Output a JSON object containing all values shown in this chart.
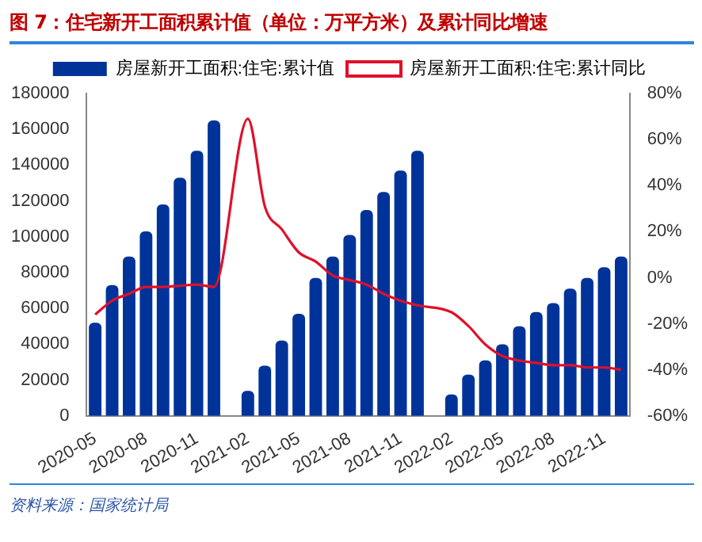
{
  "chart_data": {
    "type": "bar",
    "title": "图 7：住宅新开工面积累计值（单位：万平方米）及累计同比增速",
    "categories": [
      "2020-05",
      null,
      null,
      "2020-08",
      null,
      null,
      "2020-11",
      null,
      null,
      "2021-02",
      null,
      null,
      "2021-05",
      null,
      null,
      "2021-08",
      null,
      null,
      "2021-11",
      null,
      null,
      "2022-02",
      null,
      null,
      "2022-05",
      null,
      null,
      "2022-08",
      null,
      null,
      "2022-11",
      null
    ],
    "series": [
      {
        "name": "房屋新开工面积:住宅:累计值",
        "color": "#003399",
        "values": [
          52000,
          73000,
          89000,
          103000,
          118000,
          133000,
          148000,
          165000,
          null,
          14000,
          28000,
          42000,
          57000,
          77000,
          89000,
          101000,
          115000,
          125000,
          137000,
          148000,
          null,
          12000,
          23000,
          31000,
          40000,
          50000,
          58000,
          63000,
          71000,
          77000,
          83000,
          89000
        ]
      },
      {
        "name": "房屋新开工面积:住宅:累计同比",
        "type": "line",
        "axis": "y2",
        "color": "#e0102a",
        "values": [
          -16,
          -10,
          -7,
          -4,
          -4,
          -3.5,
          -3,
          -4,
          null,
          69,
          31,
          21,
          11,
          7,
          1,
          -1,
          -3,
          -7,
          -10,
          -12,
          null,
          -15,
          -21,
          -29,
          -34,
          -36,
          -37,
          -38,
          -38,
          -39,
          -39,
          -40
        ]
      }
    ],
    "ylim": [
      0,
      180000
    ],
    "yticks": [
      0,
      20000,
      40000,
      60000,
      80000,
      100000,
      120000,
      140000,
      160000,
      180000
    ],
    "y2lim": [
      -60,
      80
    ],
    "y2ticks": [
      {
        "value": -60,
        "label": "-60%"
      },
      {
        "value": -40,
        "label": "-40%"
      },
      {
        "value": -20,
        "label": "-20%"
      },
      {
        "value": 0,
        "label": "0%"
      },
      {
        "value": 20,
        "label": "20%"
      },
      {
        "value": 40,
        "label": "40%"
      },
      {
        "value": 60,
        "label": "60%"
      },
      {
        "value": 80,
        "label": "80%"
      }
    ],
    "grid": false,
    "legend": "top",
    "marker": "none",
    "annotations": [
      "资料来源：国家统计局"
    ]
  }
}
